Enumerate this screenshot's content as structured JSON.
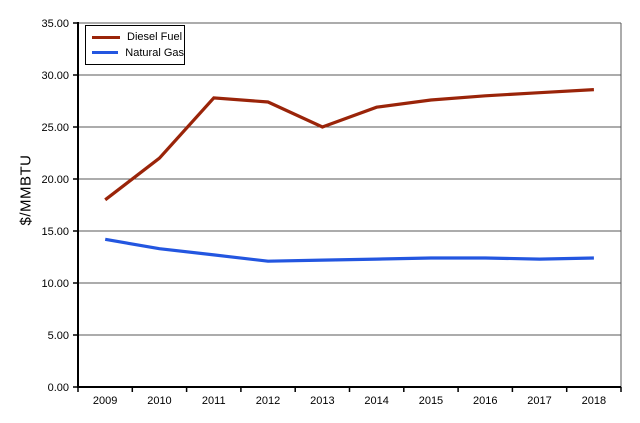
{
  "chart_data": {
    "type": "line",
    "title": "",
    "xlabel": "",
    "ylabel": "$/MMBTU",
    "ylim": [
      0,
      35
    ],
    "ytick_step": 5,
    "ytick_labels": [
      "0.00",
      "5.00",
      "10.00",
      "15.00",
      "20.00",
      "25.00",
      "30.00",
      "35.00"
    ],
    "categories": [
      "2009",
      "2010",
      "2011",
      "2012",
      "2013",
      "2014",
      "2015",
      "2016",
      "2017",
      "2018"
    ],
    "series": [
      {
        "name": "Diesel Fuel",
        "color": "#9A2409",
        "values": [
          18.0,
          22.0,
          27.8,
          27.4,
          25.0,
          26.9,
          27.6,
          28.0,
          28.3,
          28.6
        ]
      },
      {
        "name": "Natural Gas",
        "color": "#2356E0",
        "values": [
          14.2,
          13.3,
          12.7,
          12.1,
          12.2,
          12.3,
          12.4,
          12.4,
          12.3,
          12.4
        ]
      }
    ],
    "legend_position": "top-left",
    "grid": "horizontal",
    "gridline_color": "#595959",
    "axis_color": "#000000",
    "background_color": "#ffffff"
  }
}
